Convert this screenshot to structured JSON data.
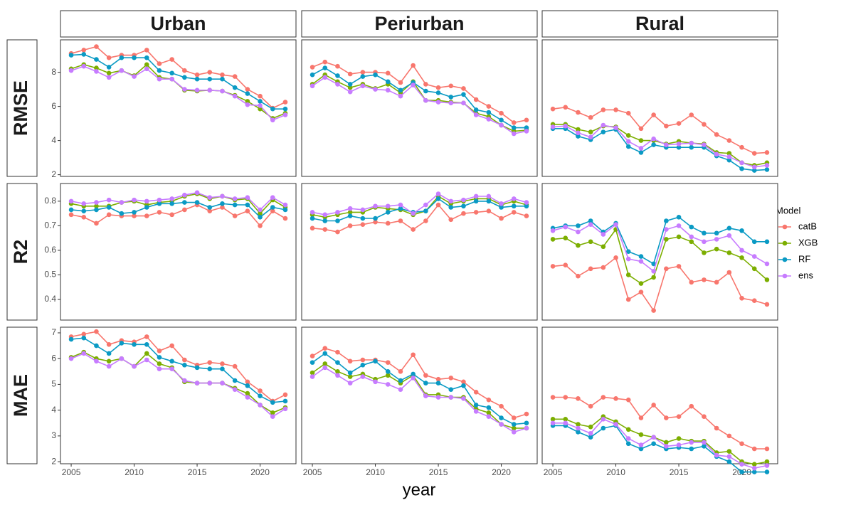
{
  "chart_data": {
    "type": "line",
    "xlabel": "year",
    "legend_title": "Model",
    "legend_position": "right",
    "grid": false,
    "x": [
      2005,
      2006,
      2007,
      2008,
      2009,
      2010,
      2011,
      2012,
      2013,
      2014,
      2015,
      2016,
      2017,
      2018,
      2019,
      2020,
      2021,
      2022
    ],
    "xlim": [
      2004.15,
      2022.85
    ],
    "xticks": [
      2005,
      2010,
      2015,
      2020
    ],
    "columns": [
      "Urban",
      "Periurban",
      "Rural"
    ],
    "series": [
      {
        "name": "catB",
        "color": "#F8766D"
      },
      {
        "name": "XGB",
        "color": "#7CAE00"
      },
      {
        "name": "RF",
        "color": "#0A9AC4"
      },
      {
        "name": "ens",
        "color": "#C77CFF"
      }
    ],
    "rows": [
      {
        "label": "RMSE",
        "ylim": [
          1.9,
          9.9
        ],
        "yticks": [
          2,
          4,
          6,
          8
        ],
        "panels": [
          [
            [
              9.1,
              9.3,
              9.5,
              8.85,
              9.0,
              9.0,
              9.3,
              8.5,
              8.75,
              8.1,
              7.85,
              8.0,
              7.85,
              7.75,
              7.0,
              6.6,
              5.9,
              6.25
            ],
            [
              8.2,
              8.45,
              8.25,
              7.95,
              8.1,
              7.8,
              8.45,
              7.7,
              7.6,
              6.95,
              6.9,
              6.95,
              6.9,
              6.65,
              6.3,
              5.85,
              5.3,
              5.6
            ],
            [
              9.0,
              9.05,
              8.75,
              8.3,
              8.85,
              8.85,
              8.85,
              8.1,
              7.95,
              7.7,
              7.6,
              7.6,
              7.6,
              7.1,
              6.75,
              6.3,
              5.85,
              5.85
            ],
            [
              8.1,
              8.35,
              8.05,
              7.7,
              8.1,
              7.75,
              8.2,
              7.6,
              7.6,
              7.0,
              6.95,
              6.95,
              6.9,
              6.6,
              6.1,
              6.05,
              5.2,
              5.5
            ]
          ],
          [
            [
              8.3,
              8.6,
              8.35,
              7.9,
              8.0,
              8.0,
              7.95,
              7.4,
              8.4,
              7.3,
              7.1,
              7.2,
              7.05,
              6.4,
              6.0,
              5.6,
              5.05,
              5.2
            ],
            [
              7.3,
              7.85,
              7.45,
              7.1,
              7.3,
              7.05,
              7.3,
              6.8,
              7.45,
              6.35,
              6.35,
              6.25,
              6.2,
              5.6,
              5.4,
              4.9,
              4.55,
              4.6
            ],
            [
              7.85,
              8.25,
              7.8,
              7.3,
              7.75,
              7.85,
              7.45,
              6.95,
              7.4,
              6.9,
              6.8,
              6.55,
              6.7,
              5.8,
              5.65,
              5.2,
              4.75,
              4.75
            ],
            [
              7.2,
              7.7,
              7.3,
              6.85,
              7.2,
              7.0,
              6.95,
              6.6,
              7.25,
              6.35,
              6.25,
              6.2,
              6.2,
              5.5,
              5.25,
              4.9,
              4.4,
              4.55
            ]
          ],
          [
            [
              5.85,
              5.95,
              5.65,
              5.35,
              5.8,
              5.8,
              5.6,
              4.7,
              5.5,
              4.85,
              5.0,
              5.5,
              4.95,
              4.35,
              4.0,
              3.6,
              3.25,
              3.3
            ],
            [
              4.95,
              4.95,
              4.65,
              4.5,
              4.85,
              4.8,
              4.3,
              4.0,
              4.0,
              3.8,
              3.95,
              3.85,
              3.8,
              3.3,
              3.25,
              2.7,
              2.55,
              2.7
            ],
            [
              4.7,
              4.7,
              4.25,
              4.05,
              4.5,
              4.65,
              3.65,
              3.3,
              3.75,
              3.6,
              3.6,
              3.6,
              3.6,
              3.1,
              2.85,
              2.35,
              2.25,
              2.3
            ],
            [
              4.8,
              4.85,
              4.45,
              4.2,
              4.9,
              4.75,
              3.95,
              3.55,
              4.1,
              3.75,
              3.8,
              3.85,
              3.75,
              3.2,
              3.05,
              2.7,
              2.45,
              2.55
            ]
          ]
        ]
      },
      {
        "label": "R2",
        "ylim": [
          0.316,
          0.872
        ],
        "yticks": [
          0.4,
          0.5,
          0.6,
          0.7,
          0.8
        ],
        "panels": [
          [
            [
              0.745,
              0.735,
              0.71,
              0.745,
              0.74,
              0.74,
              0.74,
              0.755,
              0.745,
              0.765,
              0.785,
              0.76,
              0.775,
              0.74,
              0.76,
              0.7,
              0.76,
              0.73
            ],
            [
              0.79,
              0.78,
              0.78,
              0.78,
              0.795,
              0.8,
              0.785,
              0.795,
              0.8,
              0.82,
              0.83,
              0.81,
              0.82,
              0.805,
              0.81,
              0.75,
              0.805,
              0.775
            ],
            [
              0.765,
              0.76,
              0.765,
              0.775,
              0.75,
              0.755,
              0.775,
              0.79,
              0.79,
              0.795,
              0.795,
              0.775,
              0.79,
              0.785,
              0.785,
              0.735,
              0.775,
              0.765
            ],
            [
              0.8,
              0.79,
              0.795,
              0.805,
              0.795,
              0.805,
              0.8,
              0.805,
              0.81,
              0.825,
              0.835,
              0.815,
              0.82,
              0.81,
              0.815,
              0.765,
              0.815,
              0.785
            ]
          ],
          [
            [
              0.69,
              0.685,
              0.675,
              0.7,
              0.705,
              0.715,
              0.71,
              0.72,
              0.685,
              0.72,
              0.785,
              0.725,
              0.75,
              0.755,
              0.76,
              0.73,
              0.755,
              0.74
            ],
            [
              0.745,
              0.735,
              0.745,
              0.755,
              0.755,
              0.775,
              0.77,
              0.765,
              0.745,
              0.76,
              0.82,
              0.79,
              0.8,
              0.81,
              0.81,
              0.785,
              0.8,
              0.785
            ],
            [
              0.73,
              0.72,
              0.72,
              0.74,
              0.73,
              0.73,
              0.755,
              0.77,
              0.755,
              0.76,
              0.81,
              0.775,
              0.78,
              0.8,
              0.8,
              0.775,
              0.78,
              0.78
            ],
            [
              0.755,
              0.745,
              0.755,
              0.77,
              0.765,
              0.78,
              0.78,
              0.785,
              0.75,
              0.785,
              0.83,
              0.8,
              0.805,
              0.82,
              0.82,
              0.79,
              0.81,
              0.795
            ]
          ],
          [
            [
              0.535,
              0.54,
              0.495,
              0.525,
              0.53,
              0.57,
              0.4,
              0.43,
              0.355,
              0.525,
              0.535,
              0.47,
              0.48,
              0.47,
              0.51,
              0.405,
              0.395,
              0.38
            ],
            [
              0.645,
              0.65,
              0.62,
              0.635,
              0.615,
              0.685,
              0.5,
              0.465,
              0.49,
              0.645,
              0.655,
              0.635,
              0.59,
              0.605,
              0.59,
              0.57,
              0.525,
              0.48
            ],
            [
              0.69,
              0.7,
              0.7,
              0.72,
              0.675,
              0.71,
              0.595,
              0.575,
              0.545,
              0.72,
              0.735,
              0.695,
              0.67,
              0.67,
              0.69,
              0.68,
              0.635,
              0.635
            ],
            [
              0.68,
              0.695,
              0.675,
              0.705,
              0.665,
              0.705,
              0.565,
              0.555,
              0.515,
              0.685,
              0.7,
              0.655,
              0.635,
              0.645,
              0.66,
              0.6,
              0.575,
              0.545
            ]
          ]
        ]
      },
      {
        "label": "MAE",
        "ylim": [
          1.92,
          7.22
        ],
        "yticks": [
          2,
          3,
          4,
          5,
          6,
          7
        ],
        "panels": [
          [
            [
              6.85,
              6.95,
              7.05,
              6.55,
              6.7,
              6.65,
              6.85,
              6.3,
              6.5,
              5.95,
              5.75,
              5.85,
              5.8,
              5.7,
              5.1,
              4.75,
              4.35,
              4.6
            ],
            [
              6.05,
              6.25,
              6.0,
              5.9,
              6.0,
              5.7,
              6.2,
              5.8,
              5.65,
              5.1,
              5.05,
              5.05,
              5.05,
              4.85,
              4.65,
              4.2,
              3.9,
              4.1
            ],
            [
              6.75,
              6.8,
              6.5,
              6.2,
              6.6,
              6.55,
              6.55,
              6.05,
              5.9,
              5.75,
              5.65,
              5.6,
              5.6,
              5.15,
              4.95,
              4.55,
              4.3,
              4.35
            ],
            [
              6.0,
              6.2,
              5.9,
              5.7,
              6.0,
              5.7,
              5.95,
              5.6,
              5.6,
              5.15,
              5.05,
              5.05,
              5.05,
              4.8,
              4.5,
              4.2,
              3.75,
              4.05
            ]
          ],
          [
            [
              6.1,
              6.4,
              6.25,
              5.9,
              5.95,
              5.95,
              5.85,
              5.5,
              6.15,
              5.35,
              5.2,
              5.25,
              5.1,
              4.7,
              4.4,
              4.15,
              3.7,
              3.85
            ],
            [
              5.45,
              5.8,
              5.5,
              5.3,
              5.4,
              5.2,
              5.35,
              5.05,
              5.35,
              4.6,
              4.6,
              4.5,
              4.5,
              4.05,
              3.9,
              3.45,
              3.3,
              3.3
            ],
            [
              5.85,
              6.2,
              5.85,
              5.45,
              5.75,
              5.9,
              5.5,
              5.15,
              5.4,
              5.05,
              5.05,
              4.8,
              4.95,
              4.2,
              4.1,
              3.7,
              3.45,
              3.5
            ],
            [
              5.3,
              5.65,
              5.35,
              5.05,
              5.3,
              5.1,
              5.0,
              4.8,
              5.25,
              4.55,
              4.5,
              4.5,
              4.45,
              3.95,
              3.75,
              3.45,
              3.15,
              3.3
            ]
          ],
          [
            [
              4.5,
              4.5,
              4.45,
              4.15,
              4.5,
              4.45,
              4.4,
              3.7,
              4.2,
              3.7,
              3.75,
              4.15,
              3.75,
              3.3,
              3.0,
              2.7,
              2.5,
              2.5
            ],
            [
              3.65,
              3.65,
              3.45,
              3.35,
              3.75,
              3.55,
              3.25,
              3.05,
              2.95,
              2.75,
              2.9,
              2.8,
              2.8,
              2.35,
              2.4,
              2.0,
              1.9,
              2.0
            ],
            [
              3.4,
              3.4,
              3.15,
              2.95,
              3.3,
              3.4,
              2.7,
              2.5,
              2.7,
              2.5,
              2.55,
              2.5,
              2.6,
              2.2,
              2.0,
              1.6,
              1.6,
              1.6
            ],
            [
              3.5,
              3.5,
              3.3,
              3.1,
              3.65,
              3.45,
              2.9,
              2.65,
              2.95,
              2.6,
              2.65,
              2.75,
              2.75,
              2.25,
              2.2,
              1.9,
              1.75,
              1.85
            ]
          ]
        ]
      }
    ]
  }
}
